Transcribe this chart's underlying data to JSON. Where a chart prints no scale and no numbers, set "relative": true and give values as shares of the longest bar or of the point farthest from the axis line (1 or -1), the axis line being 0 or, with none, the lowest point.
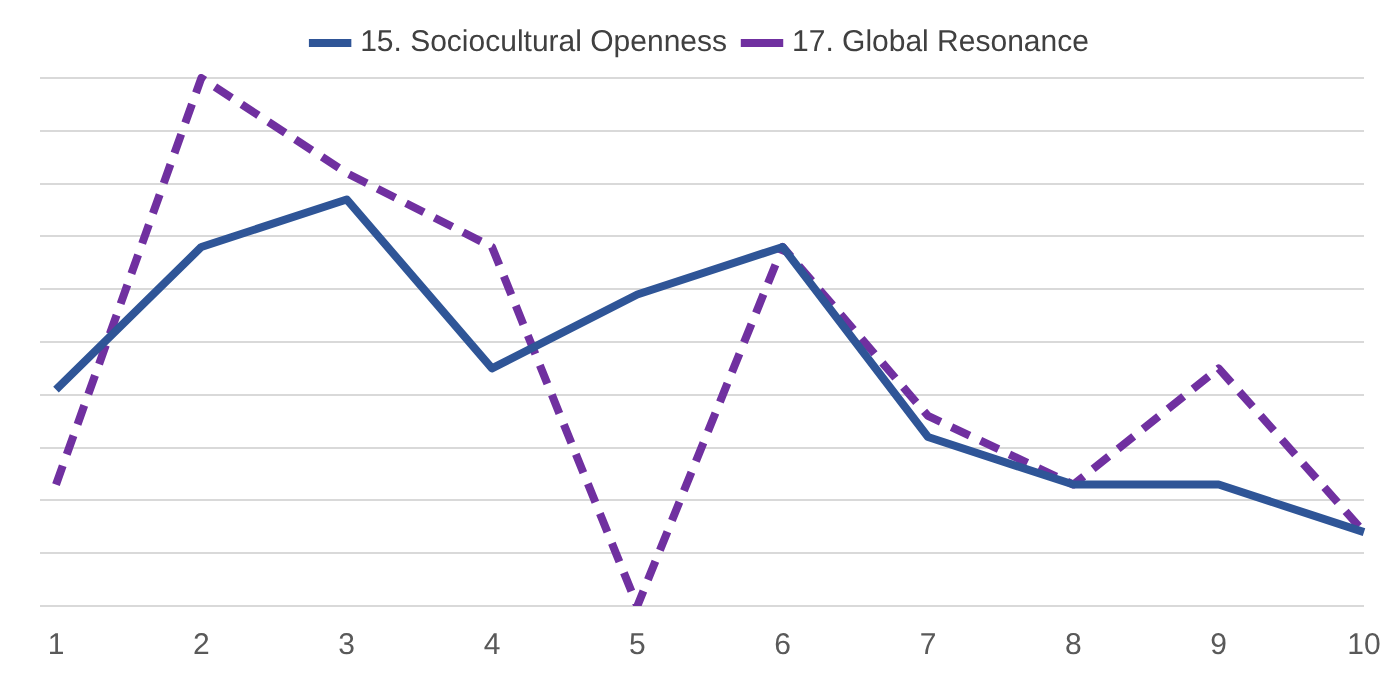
{
  "chart_data": {
    "type": "line",
    "relative": true,
    "categories": [
      "1",
      "2",
      "3",
      "4",
      "5",
      "6",
      "7",
      "8",
      "9",
      "10"
    ],
    "series": [
      {
        "name": "15. Sociocultural Openness",
        "color": "#2f5597",
        "line_style": "solid",
        "values": [
          0.41,
          0.68,
          0.77,
          0.45,
          0.59,
          0.68,
          0.32,
          0.23,
          0.23,
          0.14
        ]
      },
      {
        "name": "17. Global Resonance",
        "color": "#7030a0",
        "line_style": "dashed",
        "values": [
          0.23,
          1,
          0.82,
          0.68,
          0,
          0.68,
          0.36,
          0.23,
          0.45,
          0.14
        ]
      }
    ],
    "grid": "y",
    "legend": "top",
    "marker": "none"
  }
}
